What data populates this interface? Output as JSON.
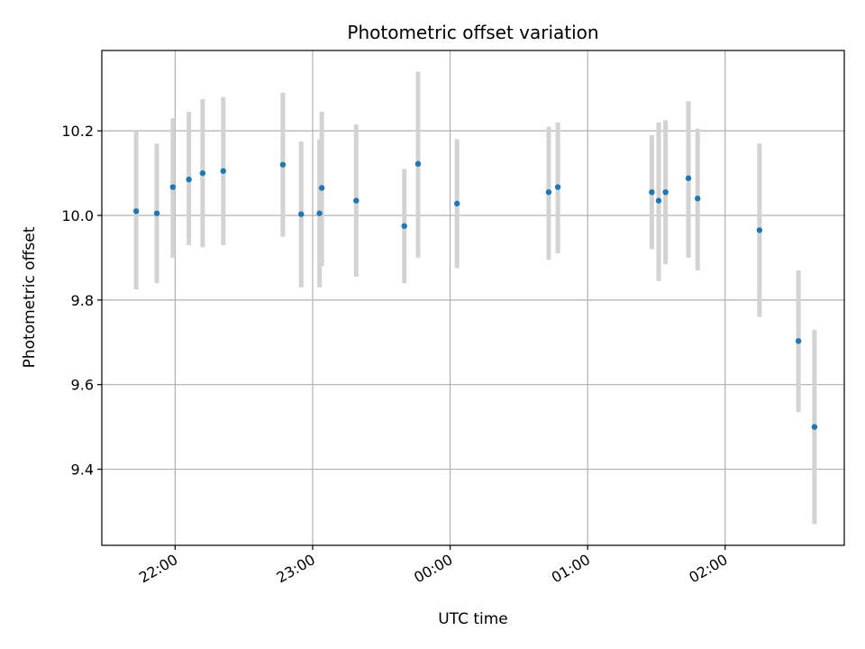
{
  "chart_data": {
    "type": "scatter",
    "title": "Photometric offset variation",
    "xlabel": "UTC time",
    "ylabel": "Photometric offset",
    "x_tick_labels": [
      "22:00",
      "23:00",
      "00:00",
      "01:00",
      "02:00"
    ],
    "y_ticks": [
      9.4,
      9.6,
      9.8,
      10.0,
      10.2
    ],
    "y_tick_labels": [
      "9.4",
      "9.6",
      "9.8",
      "10.0",
      "10.2"
    ],
    "xlim": [
      "21:28",
      "02:52"
    ],
    "ylim": [
      9.22,
      10.39
    ],
    "grid": true,
    "colors": {
      "points": "#1f77b4",
      "errorbars": "#d3d3d3",
      "grid": "#b0b0b0"
    },
    "points": [
      {
        "x": "21:43",
        "y": 10.01,
        "yerr_low": 9.825,
        "yerr_high": 10.2
      },
      {
        "x": "21:52",
        "y": 10.005,
        "yerr_low": 9.84,
        "yerr_high": 10.17
      },
      {
        "x": "21:59",
        "y": 10.067,
        "yerr_low": 9.9,
        "yerr_high": 10.23
      },
      {
        "x": "22:06",
        "y": 10.085,
        "yerr_low": 9.93,
        "yerr_high": 10.245
      },
      {
        "x": "22:12",
        "y": 10.1,
        "yerr_low": 9.925,
        "yerr_high": 10.275
      },
      {
        "x": "22:21",
        "y": 10.105,
        "yerr_low": 9.93,
        "yerr_high": 10.28
      },
      {
        "x": "22:47",
        "y": 10.12,
        "yerr_low": 9.95,
        "yerr_high": 10.29
      },
      {
        "x": "22:55",
        "y": 10.003,
        "yerr_low": 9.83,
        "yerr_high": 10.175
      },
      {
        "x": "23:03",
        "y": 10.005,
        "yerr_low": 9.83,
        "yerr_high": 10.18
      },
      {
        "x": "23:04",
        "y": 10.065,
        "yerr_low": 9.88,
        "yerr_high": 10.245
      },
      {
        "x": "23:19",
        "y": 10.035,
        "yerr_low": 9.855,
        "yerr_high": 10.215
      },
      {
        "x": "23:40",
        "y": 9.975,
        "yerr_low": 9.84,
        "yerr_high": 10.11
      },
      {
        "x": "23:46",
        "y": 10.122,
        "yerr_low": 9.9,
        "yerr_high": 10.34
      },
      {
        "x": "00:03",
        "y": 10.028,
        "yerr_low": 9.875,
        "yerr_high": 10.18
      },
      {
        "x": "00:43",
        "y": 10.055,
        "yerr_low": 9.895,
        "yerr_high": 10.21
      },
      {
        "x": "00:47",
        "y": 10.067,
        "yerr_low": 9.91,
        "yerr_high": 10.22
      },
      {
        "x": "01:28",
        "y": 10.055,
        "yerr_low": 9.92,
        "yerr_high": 10.19
      },
      {
        "x": "01:31",
        "y": 10.035,
        "yerr_low": 9.845,
        "yerr_high": 10.22
      },
      {
        "x": "01:34",
        "y": 10.055,
        "yerr_low": 9.885,
        "yerr_high": 10.225
      },
      {
        "x": "01:44",
        "y": 10.088,
        "yerr_low": 9.9,
        "yerr_high": 10.27
      },
      {
        "x": "01:48",
        "y": 10.04,
        "yerr_low": 9.87,
        "yerr_high": 10.205
      },
      {
        "x": "02:15",
        "y": 9.965,
        "yerr_low": 9.76,
        "yerr_high": 10.17
      },
      {
        "x": "02:32",
        "y": 9.703,
        "yerr_low": 9.535,
        "yerr_high": 9.87
      },
      {
        "x": "02:39",
        "y": 9.5,
        "yerr_low": 9.27,
        "yerr_high": 9.73
      }
    ]
  }
}
